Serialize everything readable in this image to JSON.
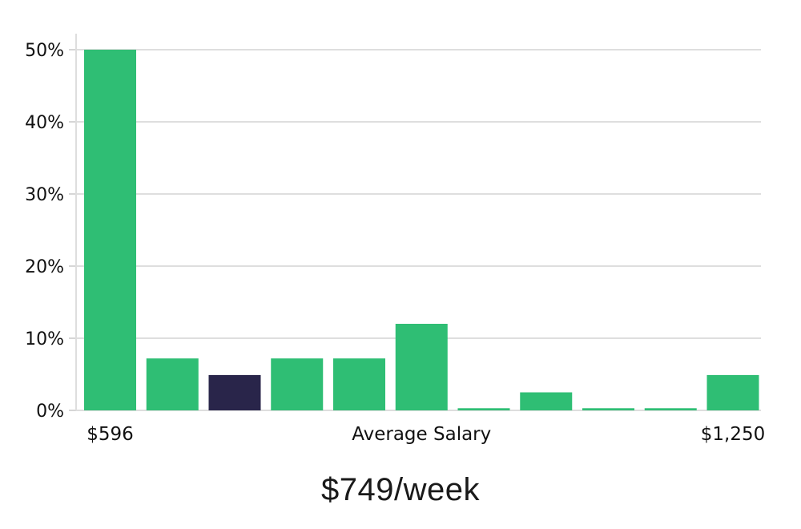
{
  "colors": {
    "green": "#2FBE74",
    "navy": "#29254A",
    "grid": "#DEDEDE",
    "tick": "#D6D6D6",
    "text": "#111111",
    "title_text": "#1A1A1A",
    "background": "#FFFFFF"
  },
  "chart_data": {
    "type": "bar",
    "title": "$749/week",
    "xlabel": "",
    "ylabel": "",
    "ylim": [
      0,
      52
    ],
    "grid": true,
    "legend": "none",
    "yticks": [
      0,
      10,
      20,
      30,
      40,
      50
    ],
    "ytick_labels": [
      "0%",
      "10%",
      "20%",
      "30%",
      "40%",
      "50%"
    ],
    "values": [
      50,
      7.2,
      4.9,
      7.2,
      7.2,
      12,
      0.3,
      2.5,
      0.3,
      0.3,
      4.9
    ],
    "bar_colors": [
      "green",
      "green",
      "navy",
      "green",
      "green",
      "green",
      "green",
      "green",
      "green",
      "green",
      "green"
    ],
    "xtick_annotations": [
      {
        "label": "$596",
        "bar_index": 0
      },
      {
        "label": "Average Salary",
        "bar_index": 5
      },
      {
        "label": "$1,250",
        "bar_index": 10
      }
    ]
  }
}
